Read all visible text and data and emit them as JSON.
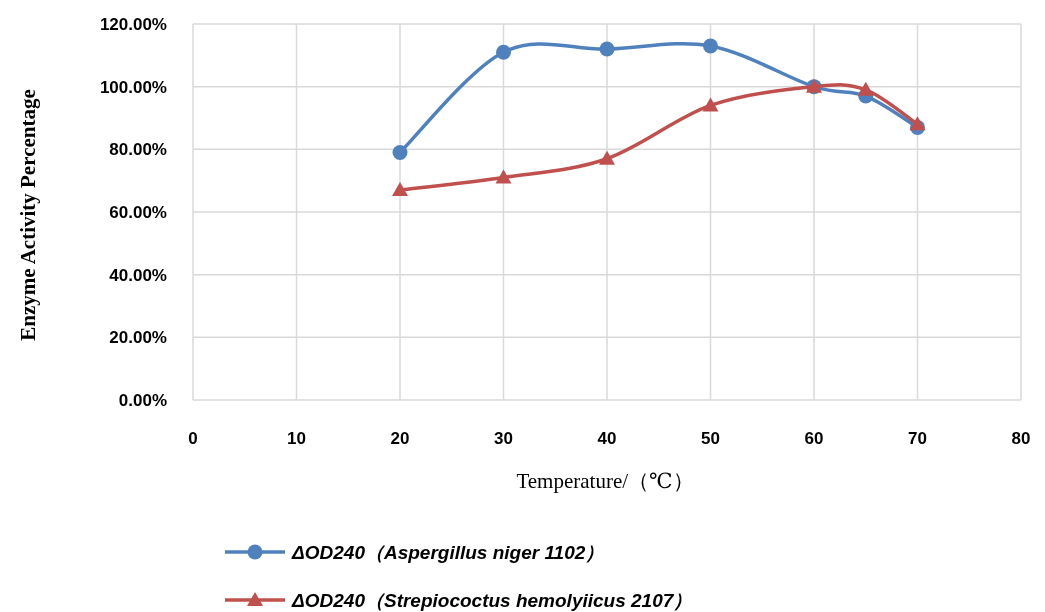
{
  "chart_data": {
    "type": "line",
    "xlabel": "Temperature/（℃）",
    "ylabel": "Enzyme Activity Percentage",
    "x": [
      20,
      30,
      40,
      50,
      60,
      65,
      70
    ],
    "xlim": [
      0,
      80
    ],
    "xticks": [
      0,
      10,
      20,
      30,
      40,
      50,
      60,
      70,
      80
    ],
    "ylim": [
      0,
      120
    ],
    "yticks": [
      {
        "value": 0,
        "label": "0.00%"
      },
      {
        "value": 20,
        "label": "20.00%"
      },
      {
        "value": 40,
        "label": "40.00%"
      },
      {
        "value": 60,
        "label": "60.00%"
      },
      {
        "value": 80,
        "label": "80.00%"
      },
      {
        "value": 100,
        "label": "100.00%"
      },
      {
        "value": 120,
        "label": "120.00%"
      }
    ],
    "grid": true,
    "legend": "bottom",
    "series": [
      {
        "name": "ΔOD240（Aspergillus niger 1102）",
        "color": "#4f81bd",
        "marker": "circle",
        "values": [
          79,
          111,
          112,
          113,
          100,
          97,
          87
        ]
      },
      {
        "name": "ΔOD240（Strepiococtus hemolyiicus 2107）",
        "color": "#c0504d",
        "marker": "triangle",
        "values": [
          67,
          71,
          77,
          94,
          100,
          99,
          88
        ]
      }
    ]
  }
}
